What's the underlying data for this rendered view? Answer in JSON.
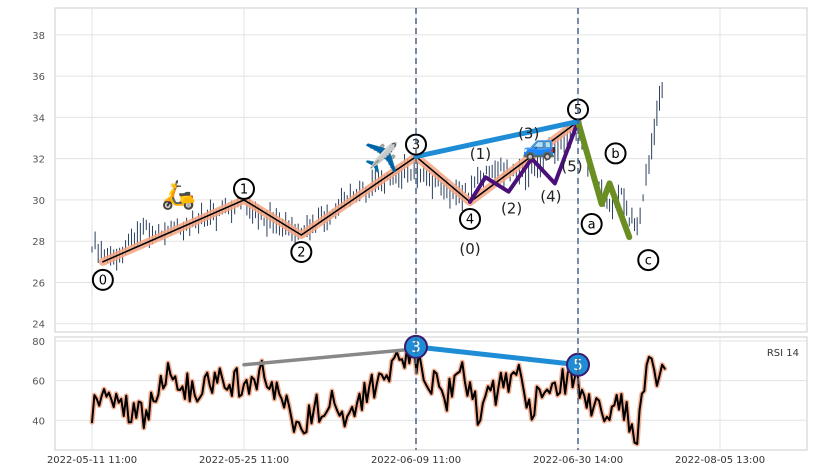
{
  "chart_data": {
    "type": "line",
    "title": "",
    "price_panel": {
      "type": "candlestick",
      "ylim": [
        23.6,
        39.3
      ],
      "yticks": [
        24,
        26,
        28,
        30,
        32,
        34,
        36,
        38
      ],
      "grid": true,
      "series": [
        {
          "name": "",
          "x": [
            "2022-05-11",
            "2022-05-13",
            "2022-05-16",
            "2022-05-18",
            "2022-05-20",
            "2022-05-23",
            "2022-05-25",
            "2022-05-27",
            "2022-05-30",
            "2022-06-01",
            "2022-06-03",
            "2022-06-06",
            "2022-06-08",
            "2022-06-10",
            "2022-06-13",
            "2022-06-15",
            "2022-06-17",
            "2022-06-20",
            "2022-06-22",
            "2022-06-24",
            "2022-06-27",
            "2022-06-29",
            "2022-07-01",
            "2022-07-04",
            "2022-07-06",
            "2022-07-08",
            "2022-07-11",
            "2022-07-13",
            "2022-07-15",
            "2022-07-18",
            "2022-07-20",
            "2022-07-22"
          ],
          "values": [
            27.9,
            27.1,
            28.6,
            28.4,
            28.9,
            29.4,
            29.8,
            29.1,
            28.4,
            29.1,
            30.1,
            30.8,
            31.4,
            31.2,
            30.4,
            30.2,
            30.9,
            31.6,
            31.1,
            31.3,
            32.6,
            33.3,
            32.9,
            31.0,
            30.2,
            29.7,
            30.4,
            29.2,
            28.7,
            32.0,
            34.2,
            35.8
          ]
        }
      ]
    },
    "elliott_waves": {
      "primary": [
        {
          "label": "0",
          "x": "2022-05-12",
          "y": 27.0
        },
        {
          "label": "1",
          "x": "2022-05-25",
          "y": 30.0
        },
        {
          "label": "2",
          "x": "2022-05-30",
          "y": 28.3
        },
        {
          "label": "3",
          "x": "2022-06-09",
          "y": 32.1
        },
        {
          "label": "4",
          "x": "2022-06-16",
          "y": 29.9
        },
        {
          "label": "5",
          "x": "2022-06-30",
          "y": 33.8
        }
      ],
      "sub_waves": [
        {
          "label": "(0)",
          "x": "2022-06-16",
          "y": 29.9
        },
        {
          "label": "(1)",
          "x": "2022-06-18",
          "y": 31.1
        },
        {
          "label": "(2)",
          "x": "2022-06-21",
          "y": 30.4
        },
        {
          "label": "(3)",
          "x": "2022-06-24",
          "y": 32.0
        },
        {
          "label": "(4)",
          "x": "2022-06-27",
          "y": 30.8
        },
        {
          "label": "(5)",
          "x": "2022-06-30",
          "y": 33.8
        }
      ],
      "correction": [
        {
          "label": "a",
          "x": "2022-07-06",
          "y": 29.8
        },
        {
          "label": "b",
          "x": "2022-07-08",
          "y": 30.8
        },
        {
          "label": "c",
          "x": "2022-07-13",
          "y": 28.2
        }
      ],
      "divergence_line": {
        "from": {
          "x": "2022-06-09",
          "y": 32.1
        },
        "to": {
          "x": "2022-06-30",
          "y": 33.8
        }
      }
    },
    "rsi_panel": {
      "label": "RSI 14",
      "ylim": [
        25,
        82
      ],
      "yticks": [
        40,
        60,
        80
      ],
      "x": [
        "2022-05-11",
        "2022-05-13",
        "2022-05-16",
        "2022-05-18",
        "2022-05-20",
        "2022-05-23",
        "2022-05-25",
        "2022-05-27",
        "2022-05-30",
        "2022-06-01",
        "2022-06-03",
        "2022-06-06",
        "2022-06-08",
        "2022-06-10",
        "2022-06-13",
        "2022-06-15",
        "2022-06-17",
        "2022-06-20",
        "2022-06-22",
        "2022-06-24",
        "2022-06-27",
        "2022-06-29",
        "2022-07-01",
        "2022-07-04",
        "2022-07-06",
        "2022-07-08",
        "2022-07-11",
        "2022-07-13",
        "2022-07-15",
        "2022-07-18",
        "2022-07-20",
        "2022-07-22"
      ],
      "values": [
        47,
        52,
        40,
        68,
        55,
        60,
        59,
        63,
        36,
        50,
        44,
        60,
        73,
        66,
        52,
        63,
        45,
        56,
        66,
        48,
        60,
        62,
        55,
        46,
        44,
        38,
        50,
        40,
        30,
        74,
        61,
        66
      ],
      "grey_divergence": {
        "from": {
          "x": "2022-05-25",
          "y": 68
        },
        "to": {
          "x": "2022-06-09",
          "y": 76
        }
      },
      "blue_divergence": {
        "from": {
          "x": "2022-06-09",
          "y": 77
        },
        "to": {
          "x": "2022-06-30",
          "y": 68
        }
      },
      "markers": [
        {
          "label": "3",
          "x": "2022-06-09",
          "y": 77
        },
        {
          "label": "5",
          "x": "2022-06-30",
          "y": 68
        }
      ]
    },
    "x_axis": {
      "ticks": [
        {
          "label": "2022-05-11 11:00",
          "x": "2022-05-11"
        },
        {
          "label": "2022-05-25 11:00",
          "x": "2022-05-25"
        },
        {
          "label": "2022-06-09 11:00",
          "x": "2022-06-09"
        },
        {
          "label": "2022-06-30 14:00",
          "x": "2022-06-30"
        },
        {
          "label": "2022-08-05 13:00",
          "x": "2022-08-05"
        }
      ]
    },
    "vertical_markers": [
      "2022-06-09",
      "2022-06-30"
    ],
    "icons": [
      {
        "name": "scooter-icon",
        "glyph": "🛵"
      },
      {
        "name": "airplane-icon",
        "glyph": "✈️"
      },
      {
        "name": "car-icon",
        "glyph": "🚙"
      }
    ],
    "colors": {
      "wave_primary": "#f4a582",
      "wave_sub": "#4b0f7a",
      "wave_correction": "#6b8e23",
      "divergence": "#1f8dd6",
      "grey_line": "#888888",
      "candle": "#2a3f5f",
      "vline": "#4a6785"
    }
  }
}
